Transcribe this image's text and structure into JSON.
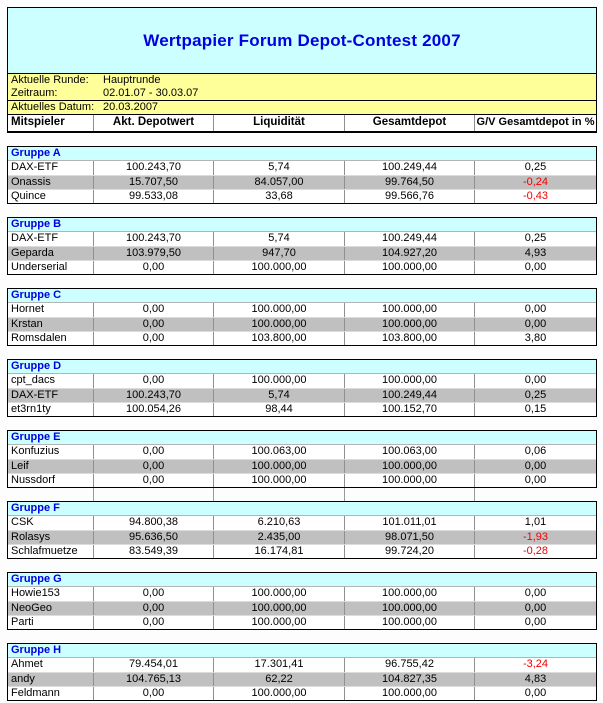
{
  "page": {
    "title": "Wertpapier Forum Depot-Contest 2007"
  },
  "info": {
    "rows": [
      {
        "label": "Aktuelle Runde:",
        "value": "Hauptrunde"
      },
      {
        "label": "Zeitraum:",
        "value": "02.01.07 - 30.03.07"
      },
      {
        "label": "Aktuelles Datum:",
        "value": "20.03.2007"
      }
    ]
  },
  "columns": [
    "Mitspieler",
    "Akt. Depotwert",
    "Liquidität",
    "Gesamtdepot",
    "G/V Gesamtdepot in %"
  ],
  "colors": {
    "title_blue": "#0000e0",
    "group_blue": "#0000e0",
    "negative_red": "#ee0000",
    "title_background": "#ccffff",
    "group_header_background": "#ccffff",
    "info_background": "#ffff99",
    "alt_row_background": "#c0c0c0"
  },
  "groups": [
    {
      "name": "Gruppe A",
      "rows": [
        {
          "player": "DAX-ETF",
          "depotwert": "100.243,70",
          "liquiditaet": "5,74",
          "gesamtdepot": "100.249,44",
          "gv_prozent": "0,25",
          "negative": false
        },
        {
          "player": "Onassis",
          "depotwert": "15.707,50",
          "liquiditaet": "84.057,00",
          "gesamtdepot": "99.764,50",
          "gv_prozent": "-0,24",
          "negative": true
        },
        {
          "player": "Quince",
          "depotwert": "99.533,08",
          "liquiditaet": "33,68",
          "gesamtdepot": "99.566,76",
          "gv_prozent": "-0,43",
          "negative": true
        }
      ]
    },
    {
      "name": "Gruppe B",
      "rows": [
        {
          "player": "DAX-ETF",
          "depotwert": "100.243,70",
          "liquiditaet": "5,74",
          "gesamtdepot": "100.249,44",
          "gv_prozent": "0,25",
          "negative": false
        },
        {
          "player": "Geparda",
          "depotwert": "103.979,50",
          "liquiditaet": "947,70",
          "gesamtdepot": "104.927,20",
          "gv_prozent": "4,93",
          "negative": false
        },
        {
          "player": "Underserial",
          "depotwert": "0,00",
          "liquiditaet": "100.000,00",
          "gesamtdepot": "100.000,00",
          "gv_prozent": "0,00",
          "negative": false
        }
      ]
    },
    {
      "name": "Gruppe C",
      "rows": [
        {
          "player": "Hornet",
          "depotwert": "0,00",
          "liquiditaet": "100.000,00",
          "gesamtdepot": "100.000,00",
          "gv_prozent": "0,00",
          "negative": false
        },
        {
          "player": "Krstan",
          "depotwert": "0,00",
          "liquiditaet": "100.000,00",
          "gesamtdepot": "100.000,00",
          "gv_prozent": "0,00",
          "negative": false
        },
        {
          "player": "Romsdalen",
          "depotwert": "0,00",
          "liquiditaet": "103.800,00",
          "gesamtdepot": "103.800,00",
          "gv_prozent": "3,80",
          "negative": false
        }
      ]
    },
    {
      "name": "Gruppe D",
      "rows": [
        {
          "player": "cpt_dacs",
          "depotwert": "0,00",
          "liquiditaet": "100.000,00",
          "gesamtdepot": "100.000,00",
          "gv_prozent": "0,00",
          "negative": false
        },
        {
          "player": "DAX-ETF",
          "depotwert": "100.243,70",
          "liquiditaet": "5,74",
          "gesamtdepot": "100.249,44",
          "gv_prozent": "0,25",
          "negative": false
        },
        {
          "player": "et3rn1ty",
          "depotwert": "100.054,26",
          "liquiditaet": "98,44",
          "gesamtdepot": "100.152,70",
          "gv_prozent": "0,15",
          "negative": false
        }
      ]
    },
    {
      "name": "Gruppe E",
      "rows": [
        {
          "player": "Konfuzius",
          "depotwert": "0,00",
          "liquiditaet": "100.063,00",
          "gesamtdepot": "100.063,00",
          "gv_prozent": "0,06",
          "negative": false
        },
        {
          "player": "Leif",
          "depotwert": "0,00",
          "liquiditaet": "100.000,00",
          "gesamtdepot": "100.000,00",
          "gv_prozent": "0,00",
          "negative": false
        },
        {
          "player": "Nussdorf",
          "depotwert": "0,00",
          "liquiditaet": "100.000,00",
          "gesamtdepot": "100.000,00",
          "gv_prozent": "0,00",
          "negative": false
        }
      ]
    },
    {
      "name": "Gruppe F",
      "rows": [
        {
          "player": "CSK",
          "depotwert": "94.800,38",
          "liquiditaet": "6.210,63",
          "gesamtdepot": "101.011,01",
          "gv_prozent": "1,01",
          "negative": false
        },
        {
          "player": "Rolasys",
          "depotwert": "95.636,50",
          "liquiditaet": "2.435,00",
          "gesamtdepot": "98.071,50",
          "gv_prozent": "-1,93",
          "negative": true
        },
        {
          "player": "Schlafmuetze",
          "depotwert": "83.549,39",
          "liquiditaet": "16.174,81",
          "gesamtdepot": "99.724,20",
          "gv_prozent": "-0,28",
          "negative": true
        }
      ]
    },
    {
      "name": "Gruppe G",
      "rows": [
        {
          "player": "Howie153",
          "depotwert": "0,00",
          "liquiditaet": "100.000,00",
          "gesamtdepot": "100.000,00",
          "gv_prozent": "0,00",
          "negative": false
        },
        {
          "player": "NeoGeo",
          "depotwert": "0,00",
          "liquiditaet": "100.000,00",
          "gesamtdepot": "100.000,00",
          "gv_prozent": "0,00",
          "negative": false
        },
        {
          "player": "Parti",
          "depotwert": "0,00",
          "liquiditaet": "100.000,00",
          "gesamtdepot": "100.000,00",
          "gv_prozent": "0,00",
          "negative": false
        }
      ]
    },
    {
      "name": "Gruppe H",
      "rows": [
        {
          "player": "Ahmet",
          "depotwert": "79.454,01",
          "liquiditaet": "17.301,41",
          "gesamtdepot": "96.755,42",
          "gv_prozent": "-3,24",
          "negative": true
        },
        {
          "player": "andy",
          "depotwert": "104.765,13",
          "liquiditaet": "62,22",
          "gesamtdepot": "104.827,35",
          "gv_prozent": "4,83",
          "negative": false
        },
        {
          "player": "Feldmann",
          "depotwert": "0,00",
          "liquiditaet": "100.000,00",
          "gesamtdepot": "100.000,00",
          "gv_prozent": "0,00",
          "negative": false
        }
      ]
    }
  ],
  "gap_with_column_lines_after_group": "Gruppe E"
}
